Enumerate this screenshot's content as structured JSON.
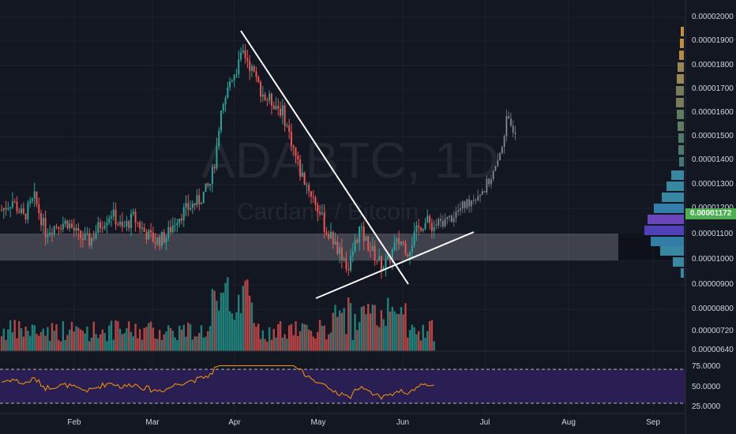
{
  "watermark": {
    "symbol": "ADABTC, 1D",
    "description": "Cardano / Bitcoin"
  },
  "last_price": "0.00001172",
  "price_axis": [
    "0.00002000",
    "0.00001900",
    "0.00001800",
    "0.00001700",
    "0.00001600",
    "0.00001500",
    "0.00001400",
    "0.00001300",
    "0.00001200",
    "0.00001100",
    "0.00001000",
    "0.00000900",
    "0.00000800",
    "0.00000720",
    "0.00000640"
  ],
  "rsi_axis": [
    "75.0000",
    "50.0000",
    "25.0000"
  ],
  "months": [
    "Feb",
    "Mar",
    "Apr",
    "May",
    "Jun",
    "Jul",
    "Aug",
    "Sep"
  ],
  "colors": {
    "up": "#26a69a",
    "down": "#ef5350",
    "background": "#131722",
    "rsi_line": "#ff9800",
    "rsi_band": "#2a1f52",
    "trendline": "#ffffff"
  },
  "chart_data": {
    "type": "candlestick",
    "symbol": "ADABTC",
    "interval": "1D",
    "ylim": [
      8.7e-06,
      2.01e-05
    ],
    "key_levels": {
      "support_zone": [
        1e-05,
        1.11e-05
      ]
    },
    "path_points": [
      [
        0,
        1.21e-05
      ],
      [
        5,
        1.25e-05
      ],
      [
        10,
        1.18e-05
      ],
      [
        15,
        1.26e-05
      ],
      [
        20,
        1.12e-05
      ],
      [
        25,
        1.15e-05
      ],
      [
        30,
        1.16e-05
      ],
      [
        35,
        1.1e-05
      ],
      [
        40,
        1.08e-05
      ],
      [
        45,
        1.15e-05
      ],
      [
        50,
        1.2e-05
      ],
      [
        55,
        1.13e-05
      ],
      [
        60,
        1.18e-05
      ],
      [
        65,
        1.12e-05
      ],
      [
        70,
        1.08e-05
      ],
      [
        75,
        1.1e-05
      ],
      [
        80,
        1.18e-05
      ],
      [
        85,
        1.22e-05
      ],
      [
        90,
        1.25e-05
      ],
      [
        95,
        1.32e-05
      ],
      [
        98,
        1.45e-05
      ],
      [
        100,
        1.6e-05
      ],
      [
        104,
        1.75e-05
      ],
      [
        108,
        1.82e-05
      ],
      [
        110,
        1.87e-05
      ],
      [
        112,
        1.84e-05
      ],
      [
        116,
        1.75e-05
      ],
      [
        120,
        1.68e-05
      ],
      [
        124,
        1.66e-05
      ],
      [
        128,
        1.62e-05
      ],
      [
        132,
        1.5e-05
      ],
      [
        136,
        1.37e-05
      ],
      [
        140,
        1.3e-05
      ],
      [
        144,
        1.22e-05
      ],
      [
        148,
        1.12e-05
      ],
      [
        152,
        1.07e-05
      ],
      [
        156,
        1.01e-05
      ],
      [
        158,
        9.6e-06
      ],
      [
        160,
        1.04e-05
      ],
      [
        163,
        1.13e-05
      ],
      [
        166,
        1.08e-05
      ],
      [
        170,
        1.02e-05
      ],
      [
        173,
        9.8e-06
      ],
      [
        176,
        9.9e-06
      ],
      [
        179,
        1.06e-05
      ],
      [
        182,
        1.08e-05
      ],
      [
        185,
        1.04e-05
      ],
      [
        188,
        1.1e-05
      ],
      [
        191,
        1.15e-05
      ],
      [
        194,
        1.16e-05
      ],
      [
        197,
        1.14e-05
      ]
    ],
    "trendlines": [
      {
        "from": [
          "Apr 1",
          1.94e-05
        ],
        "to": [
          "May 31",
          9e-06
        ]
      },
      {
        "from": [
          "May 1",
          8.8e-06
        ],
        "to": [
          "Jun 25",
          1.1e-05
        ]
      }
    ]
  }
}
